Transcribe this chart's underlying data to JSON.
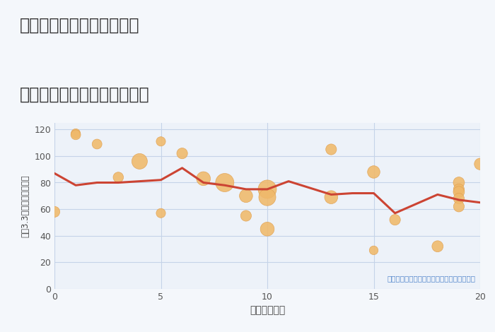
{
  "title_line1": "三重県津市白山町八対野の",
  "title_line2": "駅距離別中古マンション価格",
  "xlabel": "駅距離（分）",
  "ylabel": "坪（3.3㎡）単価（万円）",
  "annotation": "円の大きさは、取引のあった物件面積を示す",
  "bg_color": "#f4f7fb",
  "plot_bg_color": "#edf2f9",
  "grid_color": "#c5d3e8",
  "line_color": "#cc4433",
  "scatter_color": "#f0b96a",
  "scatter_edge_color": "#e0a050",
  "xlim": [
    0,
    20
  ],
  "ylim": [
    0,
    125
  ],
  "xticks": [
    0,
    5,
    10,
    15,
    20
  ],
  "yticks": [
    0,
    20,
    40,
    60,
    80,
    100,
    120
  ],
  "line_x": [
    0,
    1,
    2,
    3,
    4,
    5,
    6,
    7,
    8,
    9,
    10,
    11,
    13,
    14,
    15,
    16,
    18,
    19,
    20
  ],
  "line_y": [
    87,
    78,
    80,
    80,
    81,
    82,
    91,
    80,
    78,
    75,
    75,
    81,
    71,
    72,
    72,
    57,
    71,
    67,
    65
  ],
  "scatter_x": [
    0,
    1,
    1,
    2,
    3,
    4,
    5,
    5,
    6,
    7,
    8,
    9,
    9,
    10,
    10,
    10,
    13,
    13,
    15,
    15,
    16,
    18,
    19,
    19,
    19,
    19,
    19,
    20
  ],
  "scatter_y": [
    58,
    117,
    116,
    109,
    84,
    96,
    111,
    57,
    102,
    83,
    80,
    70,
    55,
    75,
    69,
    45,
    105,
    69,
    29,
    88,
    52,
    32,
    80,
    75,
    73,
    68,
    62,
    94
  ],
  "scatter_size": [
    120,
    90,
    100,
    100,
    110,
    250,
    90,
    90,
    120,
    200,
    350,
    180,
    120,
    350,
    300,
    200,
    120,
    180,
    80,
    160,
    120,
    130,
    130,
    120,
    130,
    120,
    120,
    140
  ]
}
